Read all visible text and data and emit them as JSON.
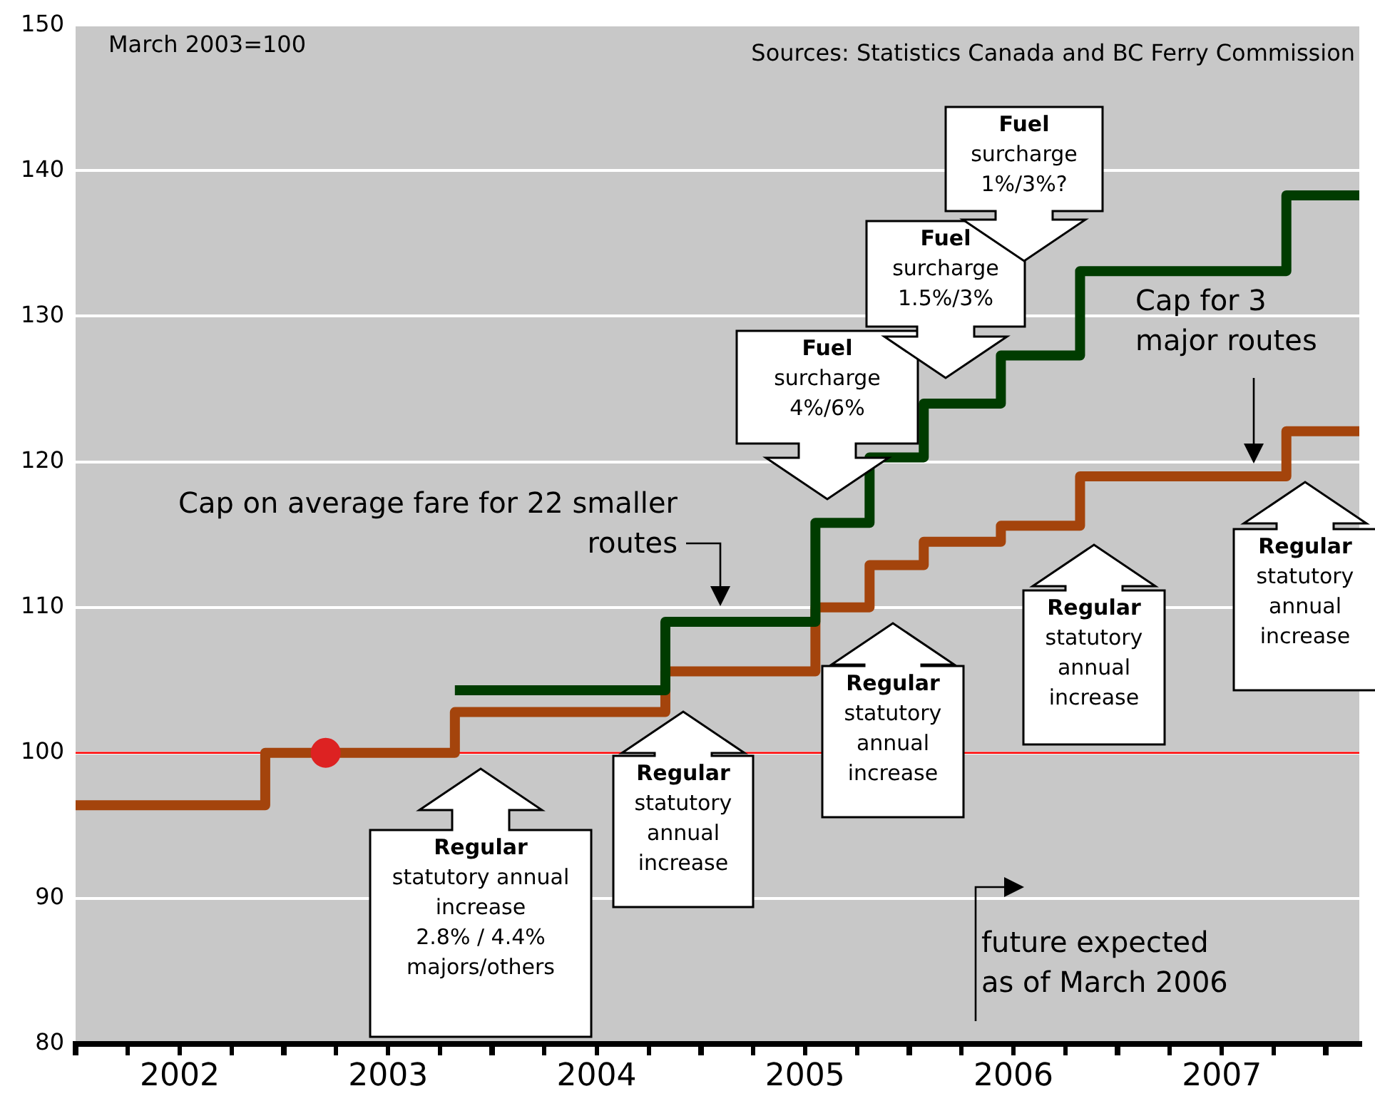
{
  "chart_data": {
    "type": "step",
    "xlim": [
      2002,
      2008.16
    ],
    "xticks": [
      {
        "value": 2002,
        "label": null
      },
      {
        "value": 2002.25,
        "label": null
      },
      {
        "value": 2002.5,
        "label": "2002"
      },
      {
        "value": 2002.75,
        "label": null
      },
      {
        "value": 2003,
        "label": null
      },
      {
        "value": 2003.25,
        "label": null
      },
      {
        "value": 2003.5,
        "label": "2003"
      },
      {
        "value": 2003.75,
        "label": null
      },
      {
        "value": 2004,
        "label": null
      },
      {
        "value": 2004.25,
        "label": null
      },
      {
        "value": 2004.5,
        "label": "2004"
      },
      {
        "value": 2004.75,
        "label": null
      },
      {
        "value": 2005,
        "label": null
      },
      {
        "value": 2005.25,
        "label": null
      },
      {
        "value": 2005.5,
        "label": "2005"
      },
      {
        "value": 2005.75,
        "label": null
      },
      {
        "value": 2006,
        "label": null
      },
      {
        "value": 2006.25,
        "label": null
      },
      {
        "value": 2006.5,
        "label": "2006"
      },
      {
        "value": 2006.75,
        "label": null
      },
      {
        "value": 2007,
        "label": null
      },
      {
        "value": 2007.25,
        "label": null
      },
      {
        "value": 2007.5,
        "label": "2007"
      },
      {
        "value": 2007.75,
        "label": null
      },
      {
        "value": 2008,
        "label": null
      }
    ],
    "ylim": [
      80,
      150
    ],
    "yticks": [
      80,
      90,
      100,
      110,
      120,
      130,
      140,
      150
    ],
    "grid": "y",
    "legend": false,
    "series": [
      {
        "color": "#a4440c",
        "marker": "none",
        "x": [
          2002,
          2002.91,
          2003.82,
          2004.83,
          2005.55,
          2005.81,
          2006.07,
          2006.44,
          2006.82,
          2007.81,
          2008.16
        ],
        "values": [
          96.4,
          100,
          102.8,
          105.6,
          110.0,
          112.9,
          114.5,
          115.6,
          119.0,
          122.1,
          122.1
        ]
      },
      {
        "color": "#003c00",
        "marker": "none",
        "x": [
          2003.82,
          2004.83,
          2005.55,
          2005.81,
          2006.07,
          2006.44,
          2006.82,
          2007.81,
          2008.16
        ],
        "values": [
          104.3,
          109.0,
          115.8,
          120.3,
          124.0,
          127.3,
          133.1,
          138.3,
          138.3
        ]
      },
      {
        "type": "scatter",
        "color": "#dd2222",
        "marker": "circle",
        "x": [
          2003.2
        ],
        "values": [
          100
        ]
      }
    ],
    "ref_lines": [
      {
        "axis": "y",
        "value": 100,
        "color": "#ff0000"
      }
    ],
    "annotations": [
      "March 2003=100",
      "Sources: Statistics Canada and BC Ferry Commission",
      "Regular\nstatutory annual\nincrease\n2.8% / 4.4%\nmajors/others",
      "Regular\nstatutory\nannual\nincrease",
      "Regular\nstatutory\nannual\nincrease",
      "Regular\nstatutory\nannual\nincrease",
      "Regular\nstatutory\nannual\nincrease",
      "Fuel\nsurcharge\n4%/6%",
      "Fuel\nsurcharge\n1.5%/3%",
      "Fuel\nsurcharge\n1%/3%?",
      "Cap on average fare for 22 smaller\nroutes",
      "Cap for 3\nmajor routes",
      "future expected\nas of March 2006"
    ]
  }
}
